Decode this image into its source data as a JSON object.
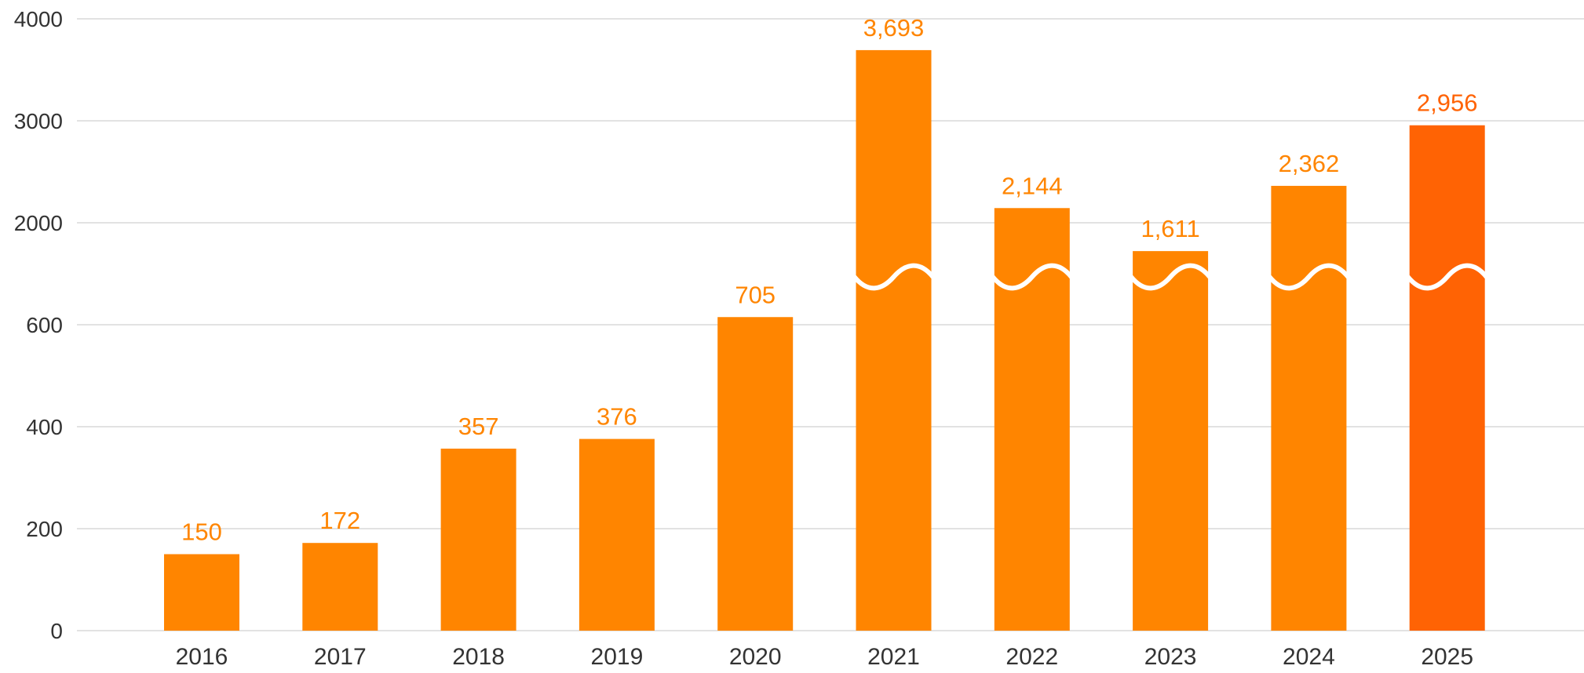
{
  "chart_data": {
    "type": "bar",
    "title": "",
    "xlabel": "",
    "ylabel": "",
    "categories": [
      "2016",
      "2017",
      "2018",
      "2019",
      "2020",
      "2021",
      "2022",
      "2023",
      "2024",
      "2025"
    ],
    "values": [
      150,
      172,
      357,
      376,
      705,
      3693,
      2144,
      1611,
      2362,
      2956
    ],
    "value_labels": [
      "150",
      "172",
      "357",
      "376",
      "705",
      "3,693",
      "2,144",
      "1,611",
      "2,362",
      "2,956"
    ],
    "y_ticks": [
      {
        "value": 0,
        "label": "0"
      },
      {
        "value": 200,
        "label": "200"
      },
      {
        "value": 400,
        "label": "400"
      },
      {
        "value": 600,
        "label": "600"
      },
      {
        "value": 2000,
        "label": "2000"
      },
      {
        "value": 3000,
        "label": "3000"
      },
      {
        "value": 4000,
        "label": "4000"
      }
    ],
    "axis_break": {
      "between": [
        600,
        2000
      ],
      "style": "wave"
    },
    "ylim": [
      0,
      4000
    ],
    "grid": true,
    "legend": "none",
    "colors": {
      "bar": "#ff8500",
      "highlight_bar": "#ff6304",
      "label": "#ff8500",
      "highlight_label": "#ff6304",
      "grid": "#e2e2e2",
      "text": "#333333"
    },
    "highlight_category": "2025"
  }
}
